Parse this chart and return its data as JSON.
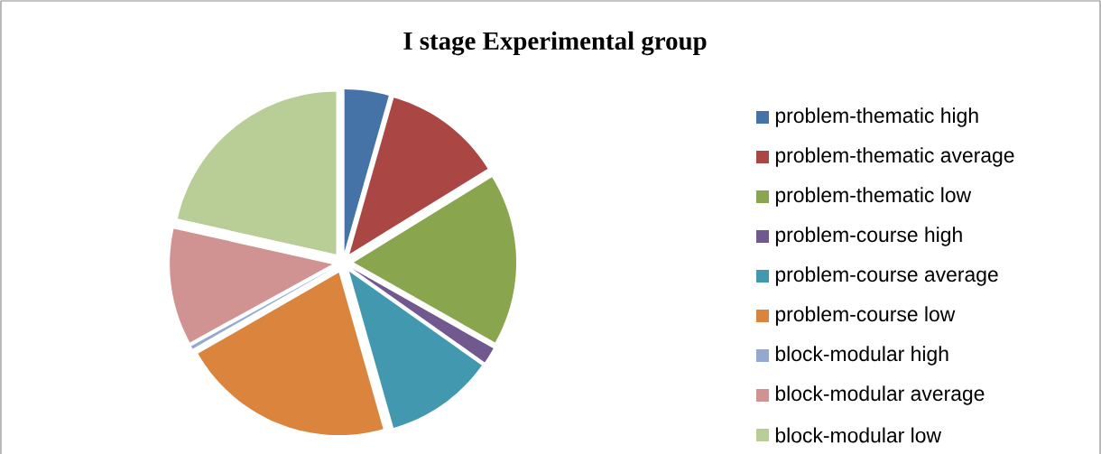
{
  "chart_data": {
    "type": "pie",
    "title": "I stage Experimental group",
    "categories": [
      "problem-thematic high",
      "problem-thematic average",
      "problem-thematic low",
      "problem-course high",
      "problem-course average",
      "problem-course low",
      "block-modular high",
      "block-modular average",
      "block-modular low"
    ],
    "values": [
      4.4,
      11.8,
      17.0,
      1.6,
      10.8,
      21.1,
      0.3,
      11.5,
      21.5
    ],
    "colors": [
      "#4572a7",
      "#aa4643",
      "#89a54e",
      "#71588f",
      "#4198af",
      "#db843d",
      "#93a9cf",
      "#d19392",
      "#b9cd96"
    ],
    "legend": "right"
  }
}
